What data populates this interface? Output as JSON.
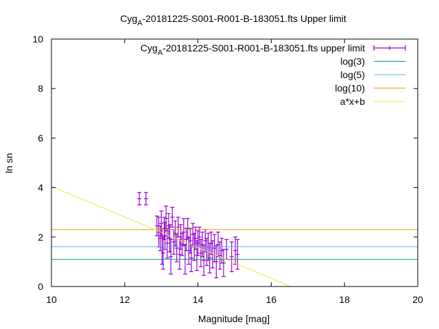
{
  "chart_data": {
    "type": "scatter",
    "title": {
      "prefix": "Cyg",
      "sub": "A",
      "suffix": "-20181225-S001-R001-B-183051.fts Upper limit"
    },
    "xlabel": "Magnitude [mag]",
    "ylabel": "ln sn",
    "xlim": [
      10,
      20
    ],
    "ylim": [
      0,
      10
    ],
    "xticks": [
      10,
      12,
      14,
      16,
      18,
      20
    ],
    "yticks": [
      0,
      2,
      4,
      6,
      8,
      10
    ],
    "grid": false,
    "legend_position": "top-right",
    "series": [
      {
        "name": {
          "prefix": "Cyg",
          "sub": "A",
          "suffix": "-20181225-S001-R001-B-183051.fts upper limit"
        },
        "kind": "errorbar",
        "color": "#9400d3",
        "points": [
          [
            12.4,
            3.55,
            0.25
          ],
          [
            12.58,
            3.55,
            0.25
          ],
          [
            12.88,
            2.45,
            0.4
          ],
          [
            12.93,
            2.2,
            0.6
          ],
          [
            12.97,
            1.95,
            0.5
          ],
          [
            13.0,
            2.55,
            0.5
          ],
          [
            13.02,
            1.6,
            0.7
          ],
          [
            13.05,
            1.35,
            0.65
          ],
          [
            13.08,
            2.35,
            0.45
          ],
          [
            13.1,
            2.05,
            0.55
          ],
          [
            13.13,
            2.75,
            0.5
          ],
          [
            13.16,
            1.75,
            0.6
          ],
          [
            13.2,
            2.45,
            0.5
          ],
          [
            13.23,
            1.95,
            0.55
          ],
          [
            13.26,
            1.2,
            0.7
          ],
          [
            13.3,
            2.8,
            0.4
          ],
          [
            13.34,
            1.8,
            0.5
          ],
          [
            13.38,
            2.15,
            0.5
          ],
          [
            13.42,
            1.55,
            0.55
          ],
          [
            13.46,
            2.4,
            0.4
          ],
          [
            13.5,
            1.3,
            0.6
          ],
          [
            13.53,
            2.0,
            0.5
          ],
          [
            13.57,
            1.7,
            0.45
          ],
          [
            13.61,
            2.2,
            0.55
          ],
          [
            13.65,
            1.1,
            0.6
          ],
          [
            13.68,
            1.9,
            0.45
          ],
          [
            13.72,
            2.35,
            0.4
          ],
          [
            13.75,
            1.45,
            0.55
          ],
          [
            13.79,
            1.85,
            0.5
          ],
          [
            13.82,
            1.15,
            0.55
          ],
          [
            13.86,
            2.1,
            0.45
          ],
          [
            13.9,
            1.6,
            0.55
          ],
          [
            13.93,
            1.95,
            0.45
          ],
          [
            13.97,
            1.25,
            0.6
          ],
          [
            14.0,
            1.75,
            0.5
          ],
          [
            14.04,
            2.0,
            0.4
          ],
          [
            14.08,
            1.35,
            0.55
          ],
          [
            14.12,
            1.7,
            0.5
          ],
          [
            14.16,
            1.05,
            0.6
          ],
          [
            14.2,
            1.85,
            0.45
          ],
          [
            14.24,
            1.4,
            0.55
          ],
          [
            14.28,
            1.6,
            0.55
          ],
          [
            14.32,
            1.15,
            0.6
          ],
          [
            14.36,
            1.75,
            0.45
          ],
          [
            14.4,
            1.3,
            0.55
          ],
          [
            14.45,
            1.55,
            0.55
          ],
          [
            14.5,
            1.0,
            0.65
          ],
          [
            14.55,
            1.7,
            0.5
          ],
          [
            14.6,
            1.25,
            0.55
          ],
          [
            14.65,
            1.45,
            0.5
          ],
          [
            14.7,
            0.95,
            0.55
          ],
          [
            14.78,
            1.5,
            0.4
          ],
          [
            14.92,
            1.2,
            0.6
          ],
          [
            15.02,
            1.45,
            0.55
          ],
          [
            15.08,
            1.3,
            0.6
          ]
        ]
      },
      {
        "name": "log(3)",
        "kind": "hline",
        "y": 1.0986,
        "color": "#009e73"
      },
      {
        "name": "log(5)",
        "kind": "hline",
        "y": 1.6094,
        "color": "#56b4e9"
      },
      {
        "name": "log(10)",
        "kind": "hline",
        "y": 2.3026,
        "color": "#e69f00"
      },
      {
        "name": "a*x+b",
        "kind": "fitline",
        "a": -0.62,
        "b": 10.25,
        "color": "#f0e442"
      }
    ]
  }
}
